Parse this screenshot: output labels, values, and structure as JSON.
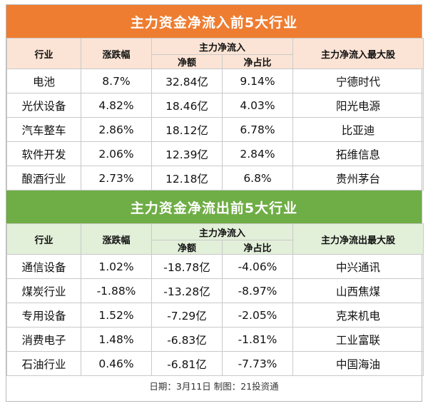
{
  "inflow": {
    "title": "主力资金净流入前5大行业",
    "headers": {
      "industry": "行业",
      "change": "涨跌幅",
      "group": "主力净流入",
      "amount": "净额",
      "ratio": "净占比",
      "top_stock": "主力净流入最大股"
    },
    "rows": [
      {
        "industry": "电池",
        "change": "8.7%",
        "amount": "32.84亿",
        "ratio": "9.14%",
        "top_stock": "宁德时代"
      },
      {
        "industry": "光伏设备",
        "change": "4.82%",
        "amount": "18.46亿",
        "ratio": "4.03%",
        "top_stock": "阳光电源"
      },
      {
        "industry": "汽车整车",
        "change": "2.86%",
        "amount": "18.12亿",
        "ratio": "6.78%",
        "top_stock": "比亚迪"
      },
      {
        "industry": "软件开发",
        "change": "2.06%",
        "amount": "12.39亿",
        "ratio": "2.84%",
        "top_stock": "拓维信息"
      },
      {
        "industry": "酿酒行业",
        "change": "2.73%",
        "amount": "12.18亿",
        "ratio": "6.8%",
        "top_stock": "贵州茅台"
      }
    ]
  },
  "outflow": {
    "title": "主力资金净流出前5大行业",
    "headers": {
      "industry": "行业",
      "change": "涨跌幅",
      "group": "主力净流入",
      "amount": "净额",
      "ratio": "净占比",
      "top_stock": "主力净流出最大股"
    },
    "rows": [
      {
        "industry": "通信设备",
        "change": "1.02%",
        "amount": "-18.78亿",
        "ratio": "-4.06%",
        "top_stock": "中兴通讯"
      },
      {
        "industry": "煤炭行业",
        "change": "-1.88%",
        "amount": "-13.28亿",
        "ratio": "-8.97%",
        "top_stock": "山西焦煤"
      },
      {
        "industry": "专用设备",
        "change": "1.52%",
        "amount": "-7.29亿",
        "ratio": "-2.05%",
        "top_stock": "克来机电"
      },
      {
        "industry": "消费电子",
        "change": "1.48%",
        "amount": "-6.83亿",
        "ratio": "-1.81%",
        "top_stock": "工业富联"
      },
      {
        "industry": "石油行业",
        "change": "0.46%",
        "amount": "-6.81亿",
        "ratio": "-7.73%",
        "top_stock": "中国海油"
      }
    ]
  },
  "footer": "日期：3月11日 制图：21投资通",
  "colors": {
    "inflow_banner": "#ee7d31",
    "inflow_header": "#fbe4d5",
    "outflow_banner": "#6fad46",
    "outflow_header": "#e2efd9"
  }
}
